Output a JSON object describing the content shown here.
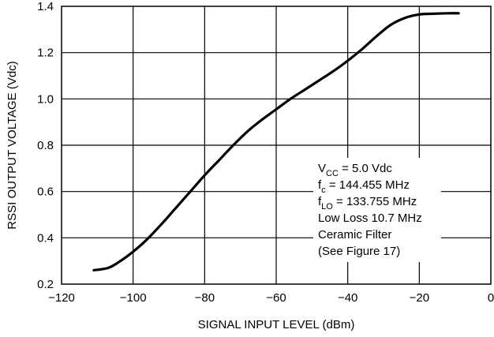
{
  "chart_data": {
    "type": "line",
    "title": "",
    "xlabel": "SIGNAL INPUT LEVEL (dBm)",
    "ylabel": "RSSI OUTPUT VOLTAGE (Vdc)",
    "xlim": [
      -120,
      0
    ],
    "ylim": [
      0.2,
      1.4
    ],
    "grid": true,
    "x_ticks": [
      -120,
      -100,
      -80,
      -60,
      -40,
      -20,
      0
    ],
    "x_tick_labels": [
      "−120",
      "−100",
      "−80",
      "−60",
      "−40",
      "−20",
      "0"
    ],
    "y_ticks": [
      0.2,
      0.4,
      0.6,
      0.8,
      1.0,
      1.2,
      1.4
    ],
    "y_tick_labels": [
      "0.2",
      "0.4",
      "0.6",
      "0.8",
      "1.0",
      "1.2",
      "1.4"
    ],
    "series": [
      {
        "color": "#000000",
        "x": [
          -111,
          -107,
          -104,
          -100,
          -96,
          -92,
          -88,
          -84,
          -80,
          -76,
          -72,
          -68,
          -64,
          -60,
          -56,
          -52,
          -48,
          -44,
          -40,
          -36,
          -32,
          -28,
          -24,
          -20,
          -16,
          -12,
          -9
        ],
        "y": [
          0.26,
          0.27,
          0.295,
          0.34,
          0.395,
          0.46,
          0.53,
          0.6,
          0.67,
          0.735,
          0.8,
          0.86,
          0.91,
          0.955,
          1.0,
          1.04,
          1.08,
          1.12,
          1.165,
          1.215,
          1.27,
          1.32,
          1.35,
          1.365,
          1.368,
          1.37,
          1.37
        ]
      }
    ],
    "annotation": {
      "lines": [
        {
          "main": "V",
          "sub": "CC",
          "rest": " = 5.0 Vdc"
        },
        {
          "main": "f",
          "sub": "c",
          "rest": " = 144.455 MHz"
        },
        {
          "main": "f",
          "sub": "LO",
          "rest": " = 133.755 MHz"
        },
        {
          "main": "Low Loss 10.7 MHz",
          "sub": "",
          "rest": ""
        },
        {
          "main": "Ceramic Filter",
          "sub": "",
          "rest": ""
        },
        {
          "main": "(See Figure 17)",
          "sub": "",
          "rest": ""
        }
      ]
    }
  }
}
